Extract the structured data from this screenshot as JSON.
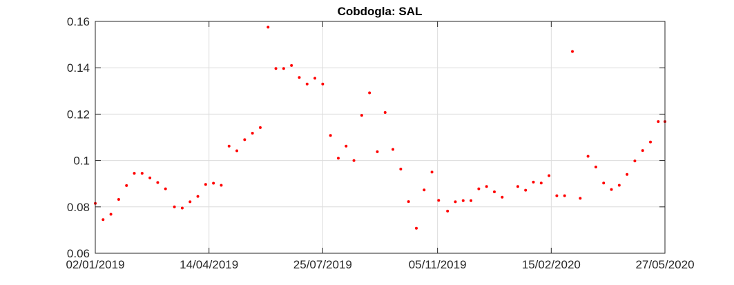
{
  "chart_data": {
    "type": "scatter",
    "title": "Cobdogla: SAL",
    "xlabel": "",
    "ylabel": "",
    "ylim": [
      0.06,
      0.16
    ],
    "xlim": [
      "2019-01-02",
      "2020-05-27"
    ],
    "grid": true,
    "legend": "none",
    "marker_color": "#ff0000",
    "y_ticks": [
      0.06,
      0.08,
      0.1,
      0.12,
      0.14,
      0.16
    ],
    "y_tick_labels": [
      "0.06",
      "0.08",
      "0.1",
      "0.12",
      "0.14",
      "0.16"
    ],
    "x_ticks": [
      "2019-01-02",
      "2019-04-14",
      "2019-07-25",
      "2019-11-05",
      "2020-02-15",
      "2020-05-27"
    ],
    "x_tick_labels": [
      "02/01/2019",
      "14/04/2019",
      "25/07/2019",
      "05/11/2019",
      "15/02/2020",
      "27/05/2020"
    ],
    "x": [
      "2019-01-02",
      "2019-01-09",
      "2019-01-16",
      "2019-01-23",
      "2019-01-30",
      "2019-02-06",
      "2019-02-13",
      "2019-02-20",
      "2019-02-27",
      "2019-03-06",
      "2019-03-14",
      "2019-03-21",
      "2019-03-28",
      "2019-04-04",
      "2019-04-11",
      "2019-04-18",
      "2019-04-25",
      "2019-05-02",
      "2019-05-09",
      "2019-05-16",
      "2019-05-23",
      "2019-05-30",
      "2019-06-06",
      "2019-06-13",
      "2019-06-20",
      "2019-06-27",
      "2019-07-04",
      "2019-07-11",
      "2019-07-18",
      "2019-07-25",
      "2019-08-01",
      "2019-08-08",
      "2019-08-15",
      "2019-08-22",
      "2019-08-29",
      "2019-09-05",
      "2019-09-12",
      "2019-09-19",
      "2019-09-26",
      "2019-10-03",
      "2019-10-10",
      "2019-10-17",
      "2019-10-24",
      "2019-10-31",
      "2019-11-06",
      "2019-11-14",
      "2019-11-21",
      "2019-11-28",
      "2019-12-05",
      "2019-12-12",
      "2019-12-19",
      "2019-12-26",
      "2020-01-02",
      "2020-01-16",
      "2020-01-23",
      "2020-01-30",
      "2020-02-06",
      "2020-02-13",
      "2020-02-20",
      "2020-02-27",
      "2020-03-05",
      "2020-03-12",
      "2020-03-19",
      "2020-03-26",
      "2020-04-02",
      "2020-04-09",
      "2020-04-16",
      "2020-04-23",
      "2020-04-30",
      "2020-05-07",
      "2020-05-14",
      "2020-05-21",
      "2020-05-27"
    ],
    "y": [
      0.0815,
      0.0745,
      0.0768,
      0.0832,
      0.0892,
      0.0945,
      0.0945,
      0.0925,
      0.0905,
      0.0878,
      0.08,
      0.0795,
      0.0822,
      0.0845,
      0.0897,
      0.0902,
      0.0893,
      0.1062,
      0.1042,
      0.109,
      0.1118,
      0.1142,
      0.1575,
      0.1397,
      0.1397,
      0.141,
      0.1358,
      0.133,
      0.1355,
      0.133,
      0.1108,
      0.101,
      0.1062,
      0.1,
      0.1195,
      0.1292,
      0.1038,
      0.1207,
      0.1048,
      0.0963,
      0.0823,
      0.0708,
      0.0873,
      0.095,
      0.0828,
      0.0782,
      0.0822,
      0.0827,
      0.0827,
      0.0878,
      0.0888,
      0.0865,
      0.0842,
      0.0888,
      0.0872,
      0.0907,
      0.0903,
      0.0935,
      0.0848,
      0.0848,
      0.147,
      0.0837,
      0.1018,
      0.0972,
      0.0903,
      0.0875,
      0.0893,
      0.094,
      0.0998,
      0.1043,
      0.108,
      0.1168,
      0.1168
    ]
  }
}
